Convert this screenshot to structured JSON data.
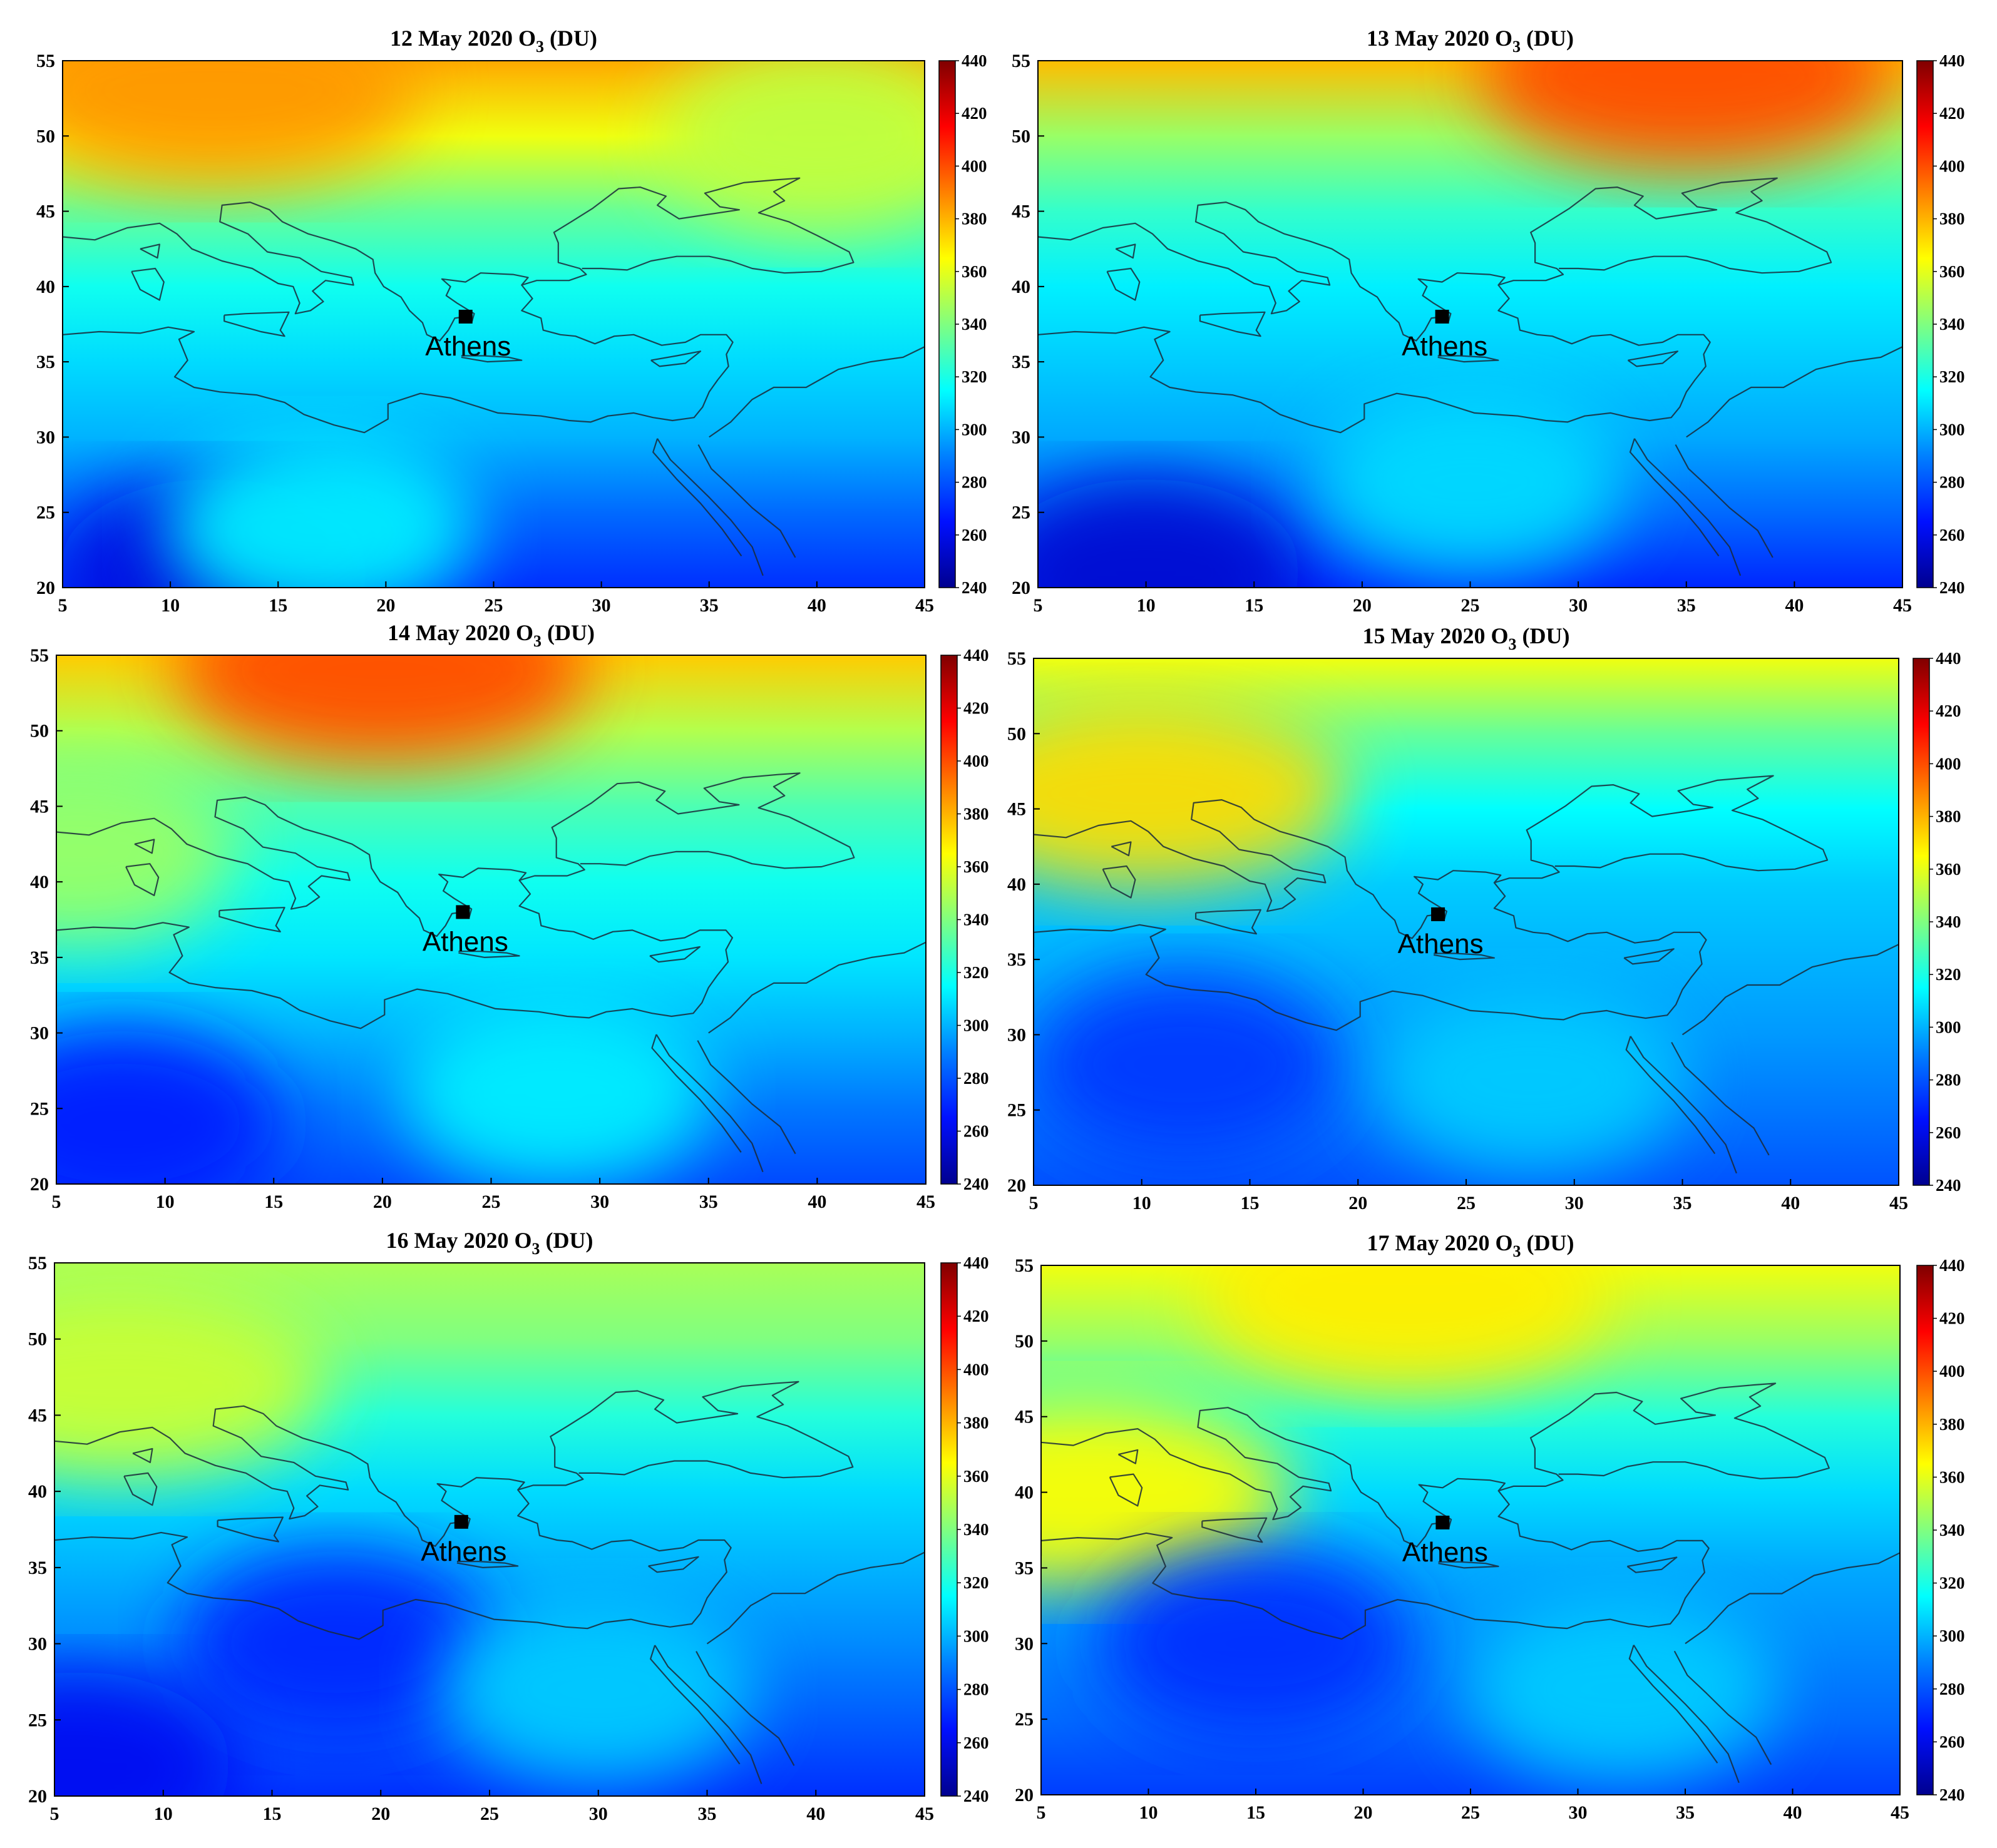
{
  "figure": {
    "quantity_label": "O",
    "quantity_subscript": "3",
    "unit": "(DU)"
  },
  "axes": {
    "lon_range": [
      5,
      45
    ],
    "lat_range": [
      20,
      55
    ],
    "lon_ticks": [
      5,
      10,
      15,
      20,
      25,
      30,
      35,
      40,
      45
    ],
    "lat_ticks": [
      20,
      25,
      30,
      35,
      40,
      45,
      50,
      55
    ]
  },
  "colorbar": {
    "range": [
      240,
      440
    ],
    "ticks": [
      240,
      260,
      280,
      300,
      320,
      340,
      360,
      380,
      400,
      420,
      440
    ],
    "colormap": [
      "#00008f",
      "#0010ff",
      "#0080ff",
      "#00ffff",
      "#80ff80",
      "#ffff00",
      "#ff8000",
      "#ff0000",
      "#800000"
    ]
  },
  "marker": {
    "label": "Athens",
    "lon": 23.7,
    "lat": 38.0
  },
  "chart_data": [
    {
      "type": "heatmap",
      "title_date": "12 May 2020",
      "ozone_du_by_lat_band": {
        "lat": [
          20,
          25,
          30,
          35,
          40,
          45,
          50,
          55
        ],
        "values": [
          272,
          285,
          300,
          308,
          318,
          335,
          362,
          382
        ]
      },
      "features": [
        {
          "kind": "high",
          "lon": 12,
          "lat": 53,
          "value": 385
        },
        {
          "kind": "low",
          "lon": 12,
          "lat": 21,
          "value": 258
        },
        {
          "kind": "local-high",
          "lon": 17,
          "lat": 24,
          "value": 312
        },
        {
          "kind": "local-high",
          "lon": 40,
          "lat": 50,
          "value": 352
        }
      ]
    },
    {
      "type": "heatmap",
      "title_date": "13 May 2020",
      "ozone_du_by_lat_band": {
        "lat": [
          20,
          25,
          30,
          35,
          40,
          45,
          50,
          55
        ],
        "values": [
          270,
          285,
          298,
          305,
          312,
          325,
          345,
          378
        ]
      },
      "features": [
        {
          "kind": "high",
          "lon": 35,
          "lat": 54,
          "value": 400
        },
        {
          "kind": "low",
          "lon": 10,
          "lat": 21,
          "value": 255
        },
        {
          "kind": "local-high",
          "lon": 25,
          "lat": 27,
          "value": 308
        }
      ]
    },
    {
      "type": "heatmap",
      "title_date": "14 May 2020",
      "ozone_du_by_lat_band": {
        "lat": [
          20,
          25,
          30,
          35,
          40,
          45,
          50,
          55
        ],
        "values": [
          278,
          288,
          300,
          310,
          318,
          330,
          350,
          375
        ]
      },
      "features": [
        {
          "kind": "high",
          "lon": 20,
          "lat": 54,
          "value": 400
        },
        {
          "kind": "low",
          "lon": 8,
          "lat": 24,
          "value": 268
        },
        {
          "kind": "local-high",
          "lon": 28,
          "lat": 26,
          "value": 312
        },
        {
          "kind": "local-high",
          "lon": 6,
          "lat": 42,
          "value": 345
        }
      ]
    },
    {
      "type": "heatmap",
      "title_date": "15 May 2020",
      "ozone_du_by_lat_band": {
        "lat": [
          20,
          25,
          30,
          35,
          40,
          45,
          50,
          55
        ],
        "values": [
          280,
          288,
          295,
          300,
          305,
          315,
          335,
          362
        ]
      },
      "features": [
        {
          "kind": "high",
          "lon": 10,
          "lat": 46,
          "value": 372
        },
        {
          "kind": "low",
          "lon": 12,
          "lat": 28,
          "value": 274
        },
        {
          "kind": "local-high",
          "lon": 28,
          "lat": 27,
          "value": 305
        }
      ]
    },
    {
      "type": "heatmap",
      "title_date": "16 May 2020",
      "ozone_du_by_lat_band": {
        "lat": [
          20,
          25,
          30,
          35,
          40,
          45,
          50,
          55
        ],
        "values": [
          272,
          282,
          292,
          300,
          308,
          322,
          340,
          348
        ]
      },
      "features": [
        {
          "kind": "high",
          "lon": 8,
          "lat": 47,
          "value": 355
        },
        {
          "kind": "low",
          "lon": 18,
          "lat": 30,
          "value": 270
        },
        {
          "kind": "low",
          "lon": 6,
          "lat": 22,
          "value": 262
        },
        {
          "kind": "local-high",
          "lon": 30,
          "lat": 27,
          "value": 305
        }
      ]
    },
    {
      "type": "heatmap",
      "title_date": "17 May 2020",
      "ozone_du_by_lat_band": {
        "lat": [
          20,
          25,
          30,
          35,
          40,
          45,
          50,
          55
        ],
        "values": [
          275,
          285,
          292,
          298,
          308,
          322,
          345,
          362
        ]
      },
      "features": [
        {
          "kind": "high",
          "lon": 7,
          "lat": 40,
          "value": 365
        },
        {
          "kind": "high",
          "lon": 22,
          "lat": 53,
          "value": 368
        },
        {
          "kind": "low",
          "lon": 15,
          "lat": 30,
          "value": 272
        },
        {
          "kind": "local-high",
          "lon": 32,
          "lat": 27,
          "value": 305
        }
      ]
    }
  ]
}
